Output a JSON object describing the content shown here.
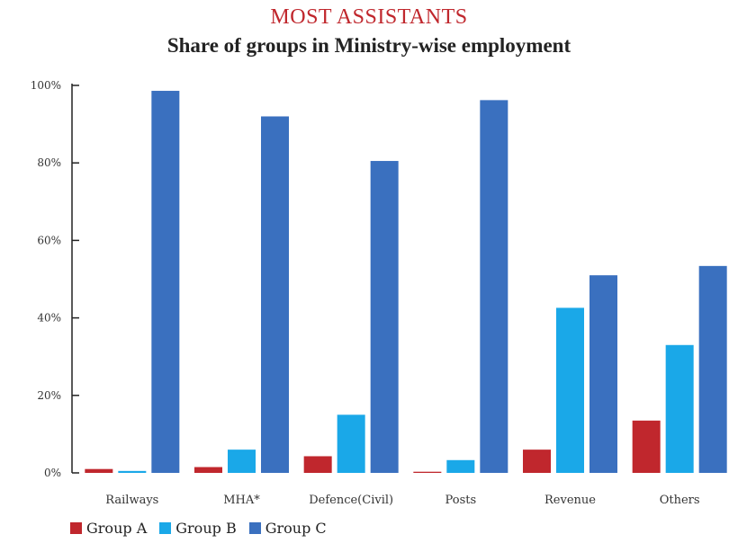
{
  "header": {
    "title": "MOST ASSISTANTS",
    "subtitle": "Share of groups in Ministry-wise employment"
  },
  "chart_data": {
    "type": "bar",
    "title": "MOST ASSISTANTS",
    "subtitle": "Share of groups in Ministry-wise employment",
    "xlabel": "",
    "ylabel": "",
    "ylim": [
      0,
      100
    ],
    "yticks": [
      0,
      20,
      40,
      60,
      80,
      100
    ],
    "ytick_labels": [
      "0%",
      "20%",
      "40%",
      "60%",
      "80%",
      "100%"
    ],
    "grid": false,
    "legend_position": "bottom-left",
    "categories": [
      "Railways",
      "MHA*",
      "Defence(Civil)",
      "Posts",
      "Revenue",
      "Others"
    ],
    "series": [
      {
        "name": "Group A",
        "color": "#c0272d",
        "values": [
          1.0,
          1.5,
          4.3,
          0.3,
          6.0,
          13.5
        ]
      },
      {
        "name": "Group B",
        "color": "#1aa8e8",
        "values": [
          0.5,
          6.0,
          15.0,
          3.3,
          42.6,
          33.0
        ]
      },
      {
        "name": "Group C",
        "color": "#3a70bf",
        "values": [
          98.6,
          92.0,
          80.5,
          96.2,
          51.0,
          53.4
        ]
      }
    ]
  }
}
